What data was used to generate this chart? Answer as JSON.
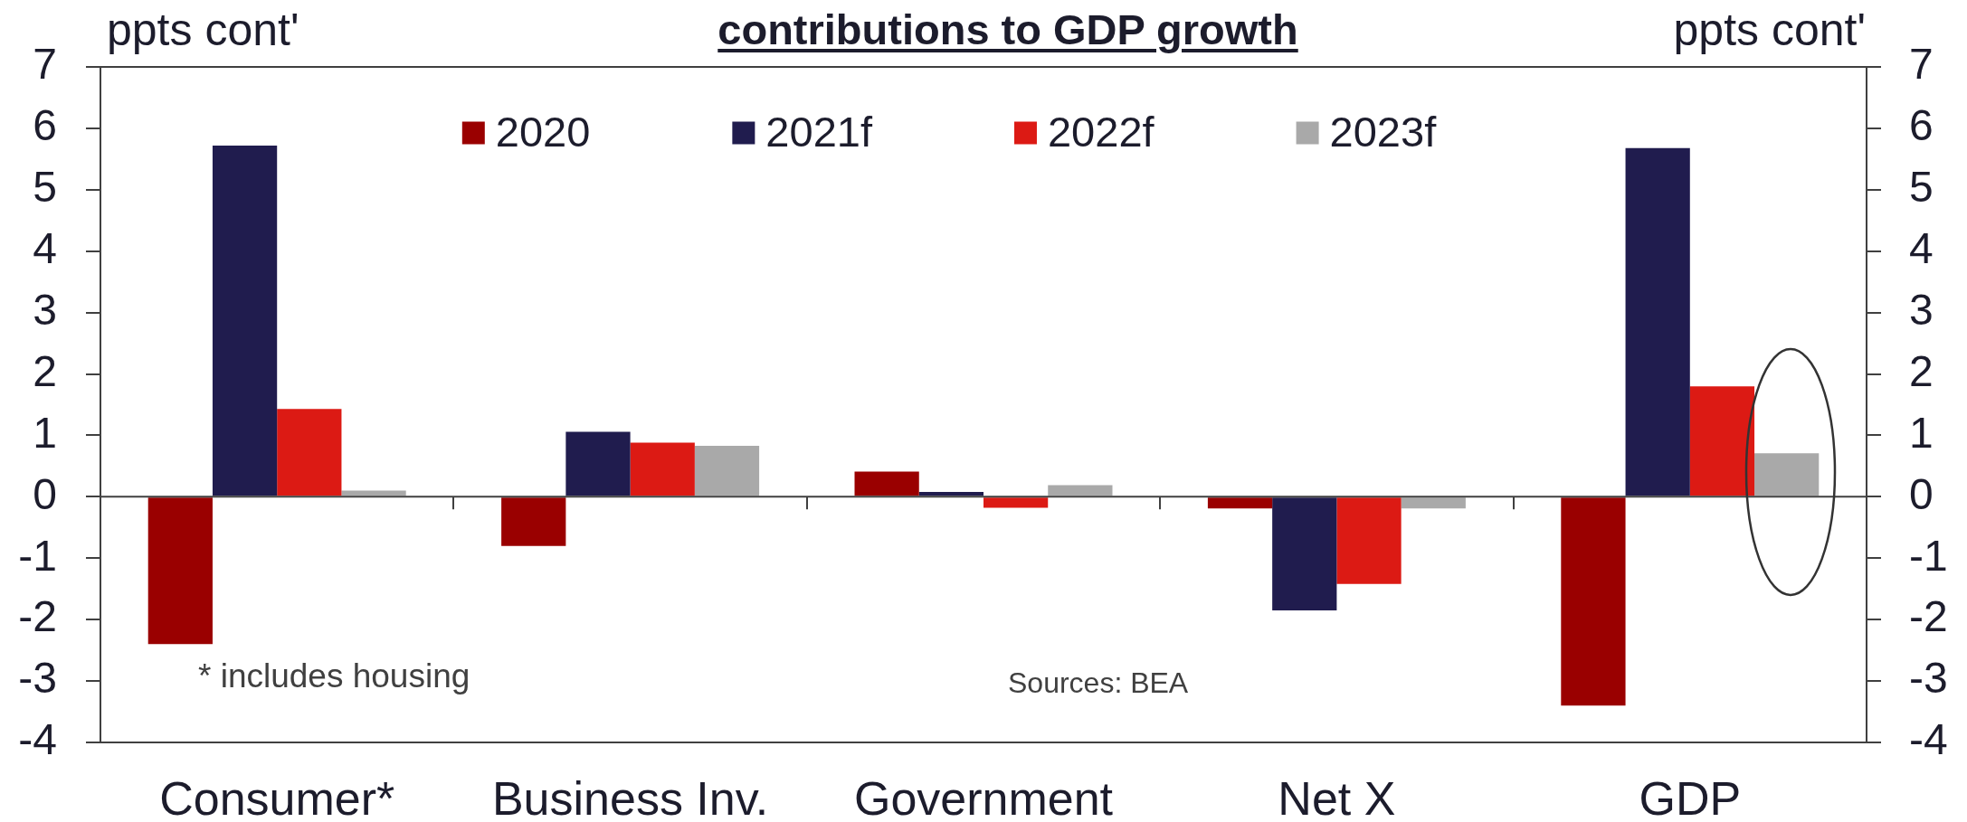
{
  "chart_data": {
    "type": "bar",
    "title": "contributions to GDP growth",
    "ylabel": "ppts cont'",
    "y2label": "ppts cont'",
    "categories": [
      "Consumer*",
      "Business Inv.",
      "Government",
      "Net X",
      "GDP"
    ],
    "series": [
      {
        "name": "2020",
        "color": "#9a0000",
        "values": [
          -2.4,
          -0.8,
          0.41,
          -0.19,
          -3.4
        ]
      },
      {
        "name": "2021f",
        "color": "#201c4e",
        "values": [
          5.72,
          1.06,
          0.08,
          -1.85,
          5.68
        ]
      },
      {
        "name": "2022f",
        "color": "#dc1a14",
        "values": [
          1.43,
          0.88,
          -0.18,
          -1.42,
          1.8
        ]
      },
      {
        "name": "2023f",
        "color": "#a9a9a9",
        "values": [
          0.1,
          0.83,
          0.19,
          -0.19,
          0.71
        ]
      }
    ],
    "ylim": [
      -4,
      7
    ],
    "yticks": [
      -4,
      -3,
      -2,
      -1,
      0,
      1,
      2,
      3,
      4,
      5,
      6,
      7
    ],
    "y2lim": [
      -4,
      7
    ],
    "y2ticks": [
      -4,
      -3,
      -2,
      -1,
      0,
      1,
      2,
      3,
      4,
      5,
      6,
      7
    ],
    "legend": "top",
    "annotations": [
      "* includes housing",
      "Sources: BEA"
    ]
  }
}
